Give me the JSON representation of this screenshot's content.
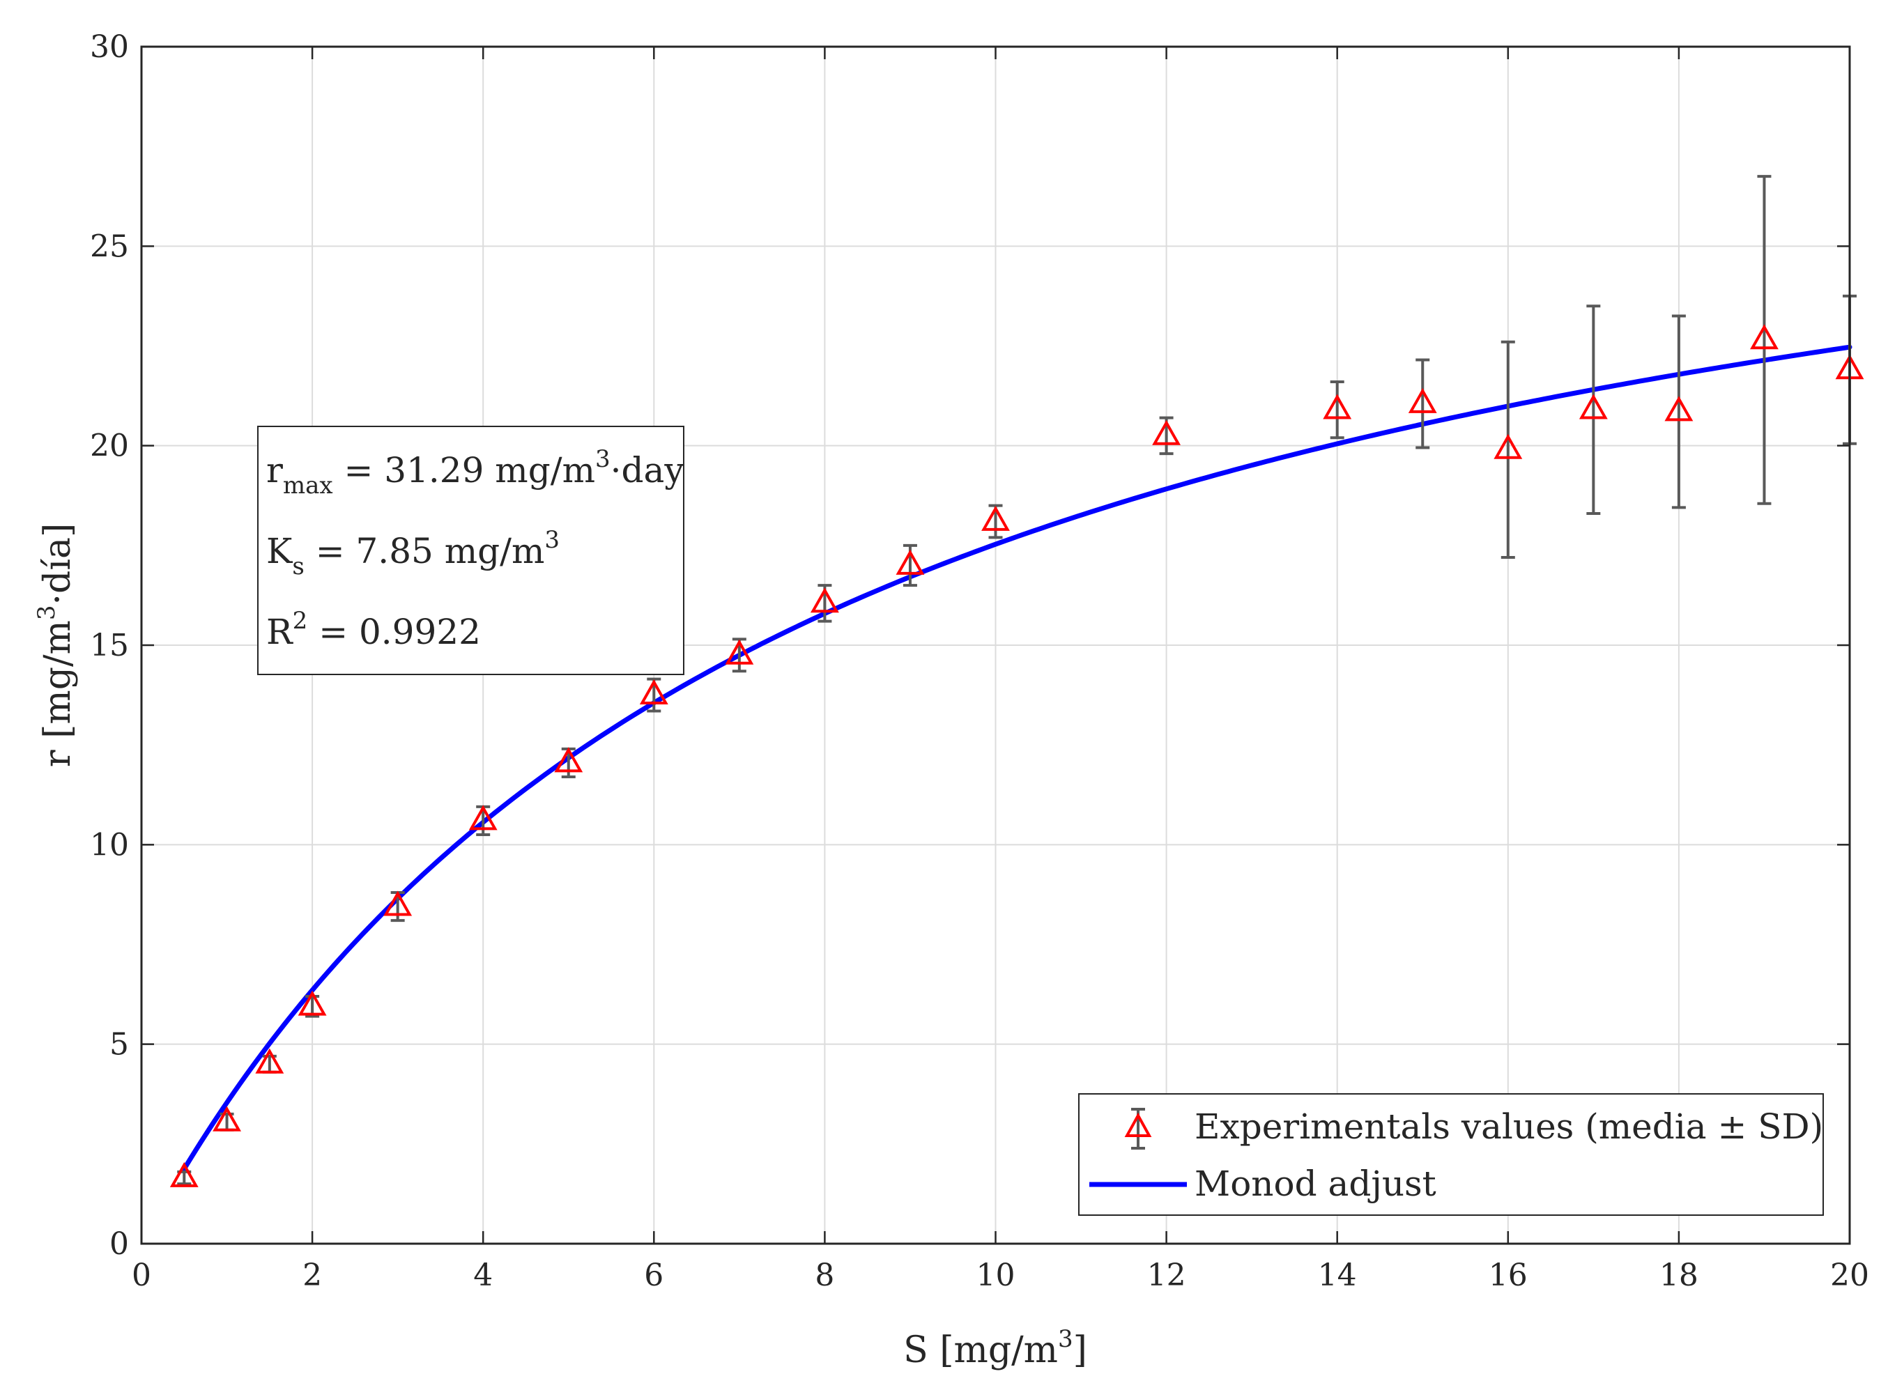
{
  "chart_data": {
    "type": "scatter",
    "title": "",
    "xlabel": {
      "main": "S [mg/m",
      "sup": "3",
      "end": "]"
    },
    "ylabel": {
      "main": "r [mg/m",
      "sup": "3",
      "end": "·día]"
    },
    "xlim": [
      0,
      20
    ],
    "ylim": [
      0,
      30
    ],
    "xticks": [
      0,
      2,
      4,
      6,
      8,
      10,
      12,
      14,
      16,
      18,
      20
    ],
    "yticks": [
      0,
      5,
      10,
      15,
      20,
      25,
      30
    ],
    "grid": true,
    "series": [
      {
        "name": "Experimentals values (media ± SD)",
        "kind": "errorbar-marker",
        "marker": "triangle",
        "color": "#ff0000",
        "errorbar_color": "#595959",
        "x": [
          0.5,
          1,
          1.5,
          2,
          3,
          4,
          5,
          6,
          7,
          8,
          9,
          10,
          12,
          14,
          15,
          16,
          17,
          18,
          19,
          20
        ],
        "y": [
          1.65,
          3.05,
          4.5,
          5.95,
          8.45,
          10.6,
          12.05,
          13.75,
          14.75,
          16.05,
          17.0,
          18.1,
          20.25,
          20.9,
          21.05,
          19.9,
          20.9,
          20.85,
          22.65,
          21.9
        ],
        "sd": [
          0.15,
          0.2,
          0.2,
          0.25,
          0.35,
          0.35,
          0.35,
          0.4,
          0.4,
          0.45,
          0.5,
          0.4,
          0.45,
          0.7,
          1.1,
          2.7,
          2.6,
          2.4,
          4.1,
          1.85
        ]
      },
      {
        "name": "Monod adjust",
        "kind": "curve",
        "color": "#0000ff",
        "model": "monod",
        "rmax": 31.29,
        "Ks": 7.85,
        "x_range": [
          0.5,
          20
        ]
      }
    ],
    "annotation": {
      "lines": [
        {
          "base": "r",
          "sub": "max",
          "text": " = 31.29 mg/m",
          "sup": "3",
          "end": "·day"
        },
        {
          "base": "K",
          "sub": "s",
          "text": " = 7.85 mg/m",
          "sup": "3",
          "end": ""
        },
        {
          "base": "R",
          "sup2": "2",
          "text": " = 0.9922"
        }
      ]
    },
    "legend": {
      "position": "bottom-right",
      "entries": [
        "Experimentals values (media ± SD)",
        "Monod adjust"
      ]
    }
  }
}
